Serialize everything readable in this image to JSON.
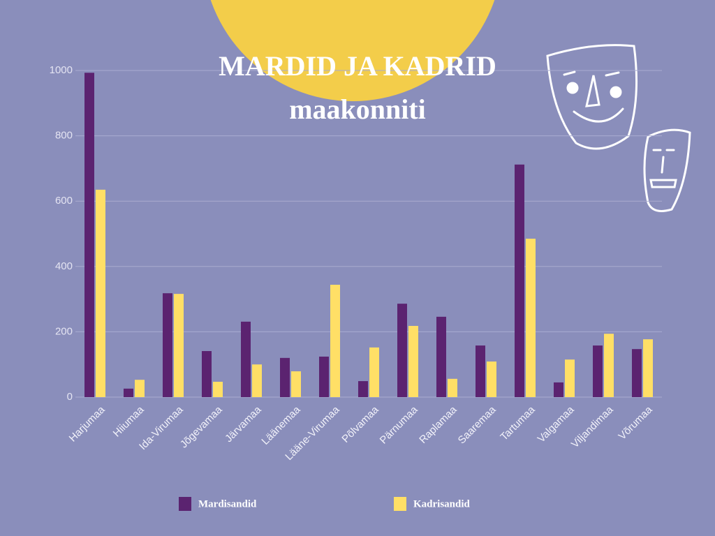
{
  "chart_data": {
    "type": "bar",
    "title": "MARDID JA KADRID maakonniti",
    "categories": [
      "Harjumaa",
      "Hiiumaa",
      "Ida-Virumaa",
      "Jõgevamaa",
      "Järvamaa",
      "Läänemaa",
      "Lääne-Virumaa",
      "Põlvamaa",
      "Pärnumaa",
      "Raplamaa",
      "Saaremaa",
      "Tartumaa",
      "Valgamaa",
      "Viljandimaa",
      "Võrumaa"
    ],
    "series": [
      {
        "name": "Mardisandid",
        "color": "#5b2370",
        "values": [
          993,
          26,
          318,
          141,
          231,
          120,
          124,
          49,
          286,
          246,
          158,
          712,
          45,
          158,
          147
        ]
      },
      {
        "name": "Kadrisandid",
        "color": "#ffdf66",
        "values": [
          635,
          53,
          316,
          47,
          100,
          79,
          344,
          152,
          218,
          56,
          109,
          485,
          115,
          194,
          177
        ]
      }
    ],
    "ylim": [
      0,
      1000
    ],
    "yticks": [
      0,
      200,
      400,
      600,
      800,
      1000
    ],
    "grid": true,
    "legend": "bottom"
  }
}
